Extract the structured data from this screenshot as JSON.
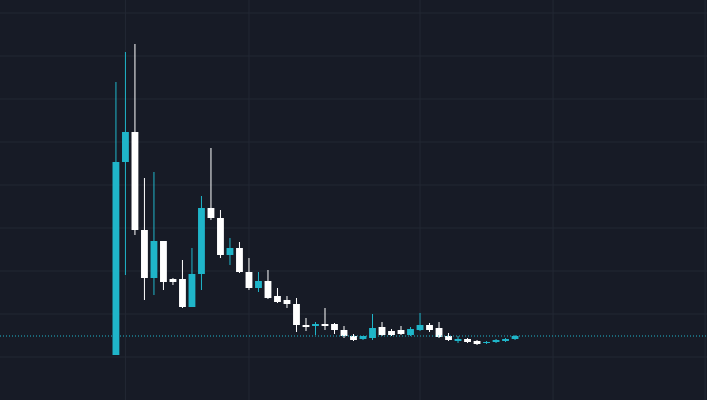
{
  "chart_data": {
    "type": "candlestick",
    "x": [
      1,
      2,
      3,
      4,
      5,
      6,
      7,
      8,
      9,
      10,
      11,
      12,
      13,
      14,
      15,
      16,
      17,
      18,
      19,
      20,
      21,
      22,
      23,
      24,
      25,
      26,
      27,
      28,
      29,
      30,
      31,
      32,
      33,
      34,
      35,
      36,
      37,
      38,
      39,
      40,
      41,
      42,
      43
    ],
    "open": [
      2,
      195,
      225,
      127,
      79,
      116,
      78,
      78,
      50,
      83,
      149,
      139,
      102,
      109,
      85,
      69,
      76,
      61,
      57,
      53,
      32,
      31,
      33,
      33,
      27,
      21,
      18,
      19,
      30,
      26,
      27,
      22,
      27,
      32,
      29,
      21,
      16,
      18,
      16,
      14,
      15,
      16,
      18
    ],
    "high": [
      275,
      305,
      313,
      179,
      185,
      116,
      79,
      97,
      109,
      161,
      209,
      147,
      119,
      115,
      99,
      85,
      87,
      69,
      61,
      59,
      39,
      35,
      49,
      34,
      31,
      23,
      21,
      43,
      35,
      28,
      31,
      30,
      44,
      34,
      35,
      24,
      21,
      19,
      17,
      16,
      18,
      19,
      22
    ],
    "low": [
      2,
      82,
      122,
      57,
      62,
      67,
      72,
      49,
      50,
      67,
      137,
      99,
      92,
      84,
      67,
      65,
      58,
      54,
      49,
      25,
      26,
      22,
      27,
      23,
      19,
      16,
      17,
      17,
      21,
      21,
      22,
      21,
      26,
      25,
      19,
      16,
      14,
      14,
      12,
      13,
      14,
      15,
      17
    ],
    "close": [
      195,
      225,
      127,
      79,
      116,
      75,
      75,
      50,
      83,
      149,
      139,
      102,
      109,
      85,
      69,
      76,
      59,
      55,
      53,
      32,
      30,
      33,
      31,
      27,
      21,
      17,
      21,
      29,
      22,
      22,
      23,
      28,
      32,
      27,
      20,
      17,
      18,
      15,
      13,
      15,
      17,
      18,
      21
    ],
    "up_color": "#1fb5c9",
    "down_color": "#ffffff",
    "xlim": [
      -11.2,
      63.2
    ],
    "xticks": [
      2,
      15,
      33,
      47,
      63
    ],
    "ylim": [
      -43,
      357
    ],
    "yticks": [
      0,
      43,
      86,
      129,
      172,
      215,
      258,
      301,
      344
    ],
    "grid": true,
    "last_price": 21
  }
}
